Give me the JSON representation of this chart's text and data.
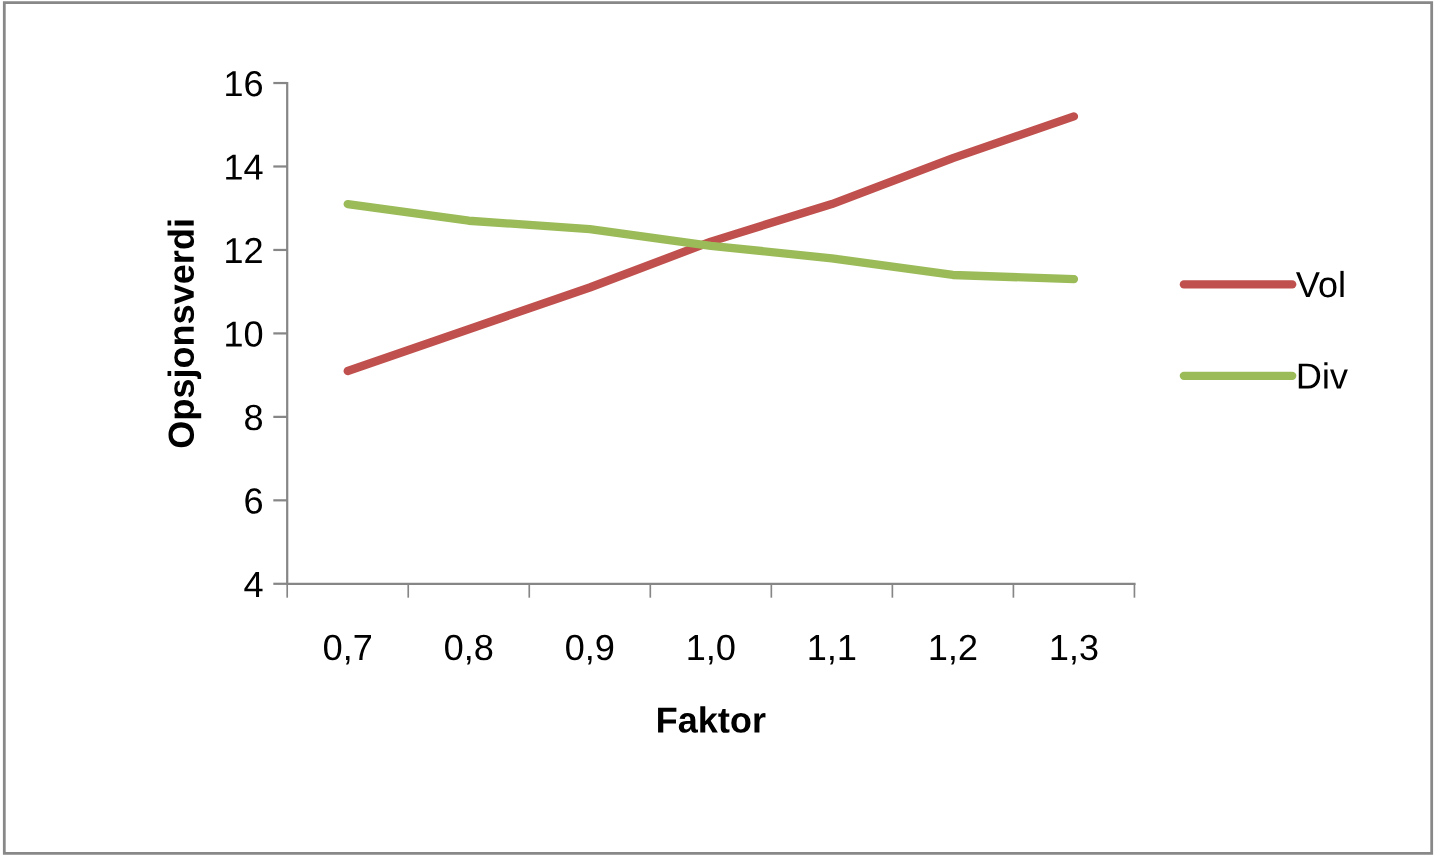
{
  "chart_data": {
    "type": "line",
    "xlabel": "Faktor",
    "ylabel": "Opsjonsverdi",
    "categories": [
      "0,7",
      "0,8",
      "0,9",
      "1,0",
      "1,1",
      "1,2",
      "1,3"
    ],
    "series": [
      {
        "name": "Vol",
        "color": "#c0504d",
        "values": [
          9.1,
          10.1,
          11.1,
          12.2,
          13.1,
          14.2,
          15.2
        ]
      },
      {
        "name": "Div",
        "color": "#9bbb59",
        "values": [
          13.1,
          12.7,
          12.5,
          12.1,
          11.8,
          11.4,
          11.3
        ]
      }
    ],
    "ylim": [
      4,
      16
    ],
    "yticks": [
      4,
      6,
      8,
      10,
      12,
      14,
      16
    ],
    "grid": false,
    "legend": "right",
    "marker": "none",
    "line_style": "solid"
  }
}
